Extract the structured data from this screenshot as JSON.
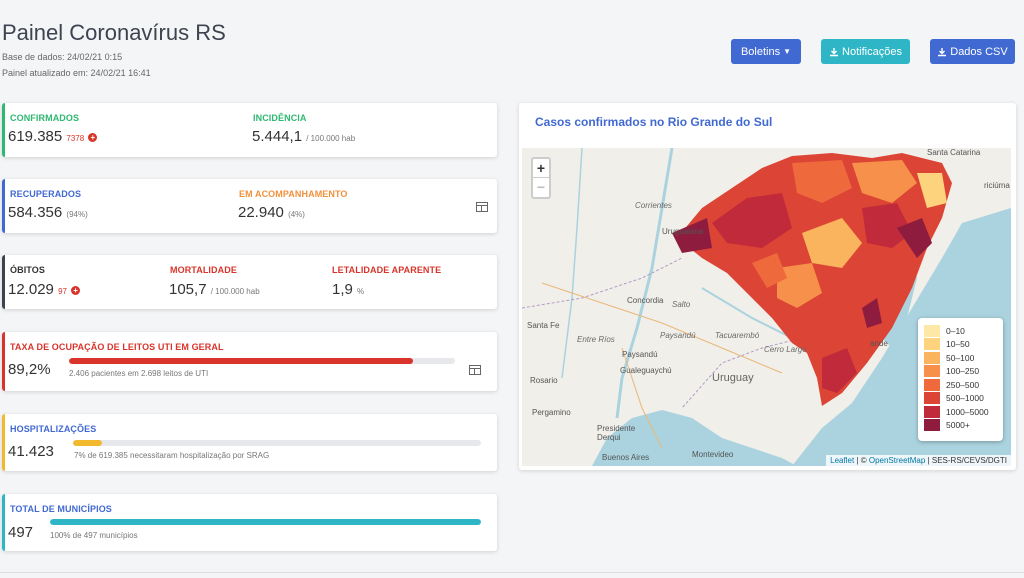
{
  "header": {
    "title": "Painel Coronavírus RS",
    "base_dados": "Base de dados: 24/02/21 0:15",
    "atualizado": "Painel atualizado em: 24/02/21 16:41"
  },
  "buttons": {
    "boletins": "Boletins",
    "notificacoes": "Notificações",
    "dados_csv": "Dados CSV"
  },
  "colors": {
    "blue": "#4169d2",
    "teal": "#2fb6c6",
    "green": "#2eb872",
    "red": "#d9342b",
    "orange": "#f0913c",
    "yellow": "#f2b92e"
  },
  "cards": {
    "confirmados": {
      "label": "CONFIRMADOS",
      "value": "619.385",
      "delta": "7378"
    },
    "incidencia": {
      "label": "INCIDÊNCIA",
      "value": "5.444,1",
      "unit": "/ 100.000 hab"
    },
    "recuperados": {
      "label": "RECUPERADOS",
      "value": "584.356",
      "pct": "(94%)"
    },
    "acompanhamento": {
      "label": "EM ACOMPANHAMENTO",
      "value": "22.940",
      "pct": "(4%)"
    },
    "obitos": {
      "label": "ÓBITOS",
      "value": "12.029",
      "delta": "97"
    },
    "mortalidade": {
      "label": "MORTALIDADE",
      "value": "105,7",
      "unit": "/ 100.000 hab"
    },
    "letalidade": {
      "label": "LETALIDADE APARENTE",
      "value": "1,9",
      "unit": "%"
    },
    "uti": {
      "label": "TAXA DE OCUPAÇÃO DE LEITOS UTI EM GERAL",
      "value": "89,2%",
      "desc": "2.406 pacientes em 2.698 leitos de UTI",
      "progress": 89.2
    },
    "hospitalizacoes": {
      "label": "HOSPITALIZAÇÕES",
      "value": "41.423",
      "desc": "7% de 619.385 necessitaram hospitalização por SRAG",
      "progress": 7
    },
    "municipios": {
      "label": "TOTAL DE MUNICÍPIOS",
      "value": "497",
      "desc": "100% de 497 municípios",
      "progress": 100
    }
  },
  "map": {
    "title": "Casos confirmados no Rio Grande do Sul",
    "zoom_in": "+",
    "zoom_out": "−",
    "legend": [
      {
        "label": "0–10",
        "color": "#fde8a8"
      },
      {
        "label": "10–50",
        "color": "#fdd37e"
      },
      {
        "label": "50–100",
        "color": "#fbb45e"
      },
      {
        "label": "100–250",
        "color": "#f7904a"
      },
      {
        "label": "250–500",
        "color": "#ee6a3c"
      },
      {
        "label": "500–1000",
        "color": "#dc4435"
      },
      {
        "label": "1000–5000",
        "color": "#c02a3a"
      },
      {
        "label": "5000+",
        "color": "#8e1c3f"
      }
    ],
    "attribution": {
      "leaflet": "Leaflet",
      "osm_prefix": "| ©",
      "osm": "OpenStreetMap",
      "source": "| SES-RS/CEVS/DGTI"
    },
    "places": {
      "santa_catarina": "Santa Catarina",
      "corrientes": "Corrientes",
      "uruguaiana": "Uruguaiana",
      "concordia": "Concordia",
      "salto": "Salto",
      "santa_fe": "Santa Fe",
      "entre_rios": "Entre Ríos",
      "paysandu_it": "Paysandú",
      "tacuarembo": "Tacuarembó",
      "cerro_largo": "Cerro Largo",
      "paysandu": "Paysandú",
      "rosario": "Rosario",
      "gualeguaychu": "Gualeguaychú",
      "uruguay": "Uruguay",
      "pergamino": "Pergamino",
      "presidente_derqui": "Presidente\nDerqui",
      "buenos_aires": "Buenos Aires",
      "montevideo": "Montevideo",
      "riciuma": "riciúma",
      "ande": "ande",
      "sta_fe_short": "Santa Fe"
    }
  }
}
